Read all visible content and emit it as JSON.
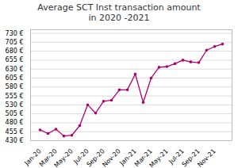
{
  "chart_data": {
    "type": "line",
    "title": "Average SCT Inst transaction amount\nin 2020 -2021",
    "categories": [
      "Jan-20",
      null,
      "Mar-20",
      null,
      "May-20",
      null,
      "Jul-20",
      null,
      "Sep-20",
      null,
      "Nov-20",
      null,
      "Jan-21",
      null,
      "Mar-21",
      null,
      "May-21",
      null,
      "Jul-21",
      null,
      "Sep-21",
      null,
      "Nov-21",
      null
    ],
    "values": [
      460,
      450,
      462,
      443,
      445,
      472,
      530,
      507,
      540,
      543,
      572,
      572,
      616,
      537,
      605,
      635,
      637,
      645,
      655,
      650,
      648,
      683,
      693,
      700
    ],
    "color": "#b0006e",
    "marker": "o",
    "ylim": [
      430,
      740
    ],
    "yticks": [
      {
        "value": 430,
        "label": "430 €"
      },
      {
        "value": 455,
        "label": "455 €"
      },
      {
        "value": 480,
        "label": "480 €"
      },
      {
        "value": 505,
        "label": "505 €"
      },
      {
        "value": 530,
        "label": "530 €"
      },
      {
        "value": 555,
        "label": "555 €"
      },
      {
        "value": 580,
        "label": "580 €"
      },
      {
        "value": 605,
        "label": "605 €"
      },
      {
        "value": 630,
        "label": "630 €"
      },
      {
        "value": 655,
        "label": "655 €"
      },
      {
        "value": 680,
        "label": "680 €"
      },
      {
        "value": 705,
        "label": "705 €"
      },
      {
        "value": 730,
        "label": "730 €"
      }
    ],
    "grid": true
  }
}
